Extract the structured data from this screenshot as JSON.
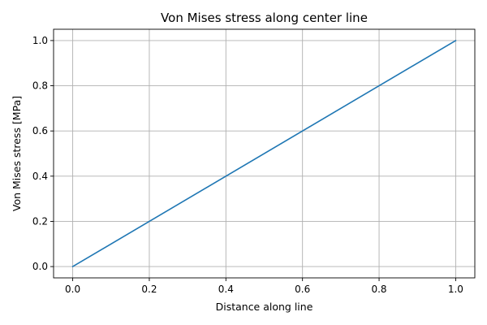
{
  "chart_data": {
    "type": "line",
    "title": "Von Mises stress along center line",
    "xlabel": "Distance along line",
    "ylabel": "Von Mises stress [MPa]",
    "xlim": [
      -0.05,
      1.05
    ],
    "ylim": [
      -0.05,
      1.05
    ],
    "xticks": [
      "0.0",
      "0.2",
      "0.4",
      "0.6",
      "0.8",
      "1.0"
    ],
    "yticks": [
      "0.0",
      "0.2",
      "0.4",
      "0.6",
      "0.8",
      "1.0"
    ],
    "grid": true,
    "series": [
      {
        "color": "#1f77b4",
        "x": [
          0.0,
          1.0
        ],
        "y": [
          0.0,
          1.0
        ]
      }
    ]
  }
}
